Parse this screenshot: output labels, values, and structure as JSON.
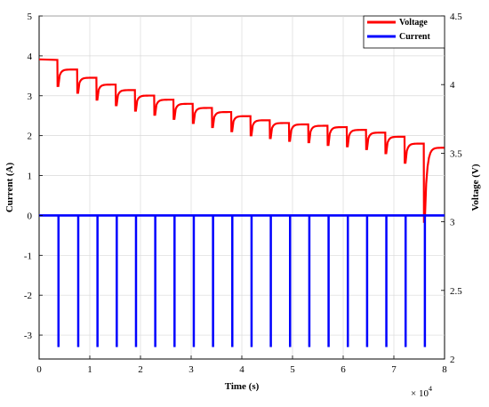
{
  "chart_data": {
    "type": "line",
    "xlabel": "Time (s)",
    "ylabel_left": "Current (A)",
    "ylabel_right": "Voltage (V)",
    "x_multiplier": "× 10",
    "x_multiplier_exp": "4",
    "x_ticks": [
      "0",
      "1",
      "2",
      "3",
      "4",
      "5",
      "6",
      "7",
      "8"
    ],
    "y_left_ticks": [
      "-3",
      "-2",
      "-1",
      "0",
      "1",
      "2",
      "3",
      "4",
      "5"
    ],
    "y_right_ticks": [
      "2",
      "2.5",
      "3",
      "3.5",
      "4",
      "4.5"
    ],
    "xlim": [
      0,
      8
    ],
    "ylim_left": [
      -3.6,
      5
    ],
    "ylim_right": [
      2,
      4.5
    ],
    "grid": true,
    "legend_position": "top-right",
    "colors": {
      "voltage": "#ff0000",
      "current": "#0000ff"
    },
    "series": [
      {
        "name": "Voltage",
        "axis": "right",
        "pulse_times": [
          0.36,
          0.75,
          1.13,
          1.51,
          1.89,
          2.27,
          2.65,
          3.03,
          3.41,
          3.79,
          4.17,
          4.55,
          4.93,
          5.31,
          5.69,
          6.07,
          6.45,
          6.83,
          7.21,
          7.59
        ],
        "pulse_width": 0.02,
        "rest_voltage": [
          4.18,
          4.11,
          4.05,
          4.0,
          3.96,
          3.92,
          3.89,
          3.86,
          3.83,
          3.8,
          3.77,
          3.74,
          3.72,
          3.71,
          3.7,
          3.69,
          3.67,
          3.65,
          3.62,
          3.57,
          3.54
        ],
        "min_voltage": [
          3.99,
          3.94,
          3.89,
          3.85,
          3.81,
          3.78,
          3.75,
          3.72,
          3.69,
          3.66,
          3.63,
          3.61,
          3.59,
          3.58,
          3.56,
          3.55,
          3.53,
          3.5,
          3.43,
          3.0
        ]
      },
      {
        "name": "Current",
        "axis": "left",
        "baseline": 0,
        "pulse_value": -3.3,
        "pulse_times": [
          0.36,
          0.75,
          1.13,
          1.51,
          1.89,
          2.27,
          2.65,
          3.03,
          3.41,
          3.79,
          4.17,
          4.55,
          4.93,
          5.31,
          5.69,
          6.07,
          6.45,
          6.83,
          7.21,
          7.59
        ],
        "pulse_width": 0.02
      }
    ]
  }
}
